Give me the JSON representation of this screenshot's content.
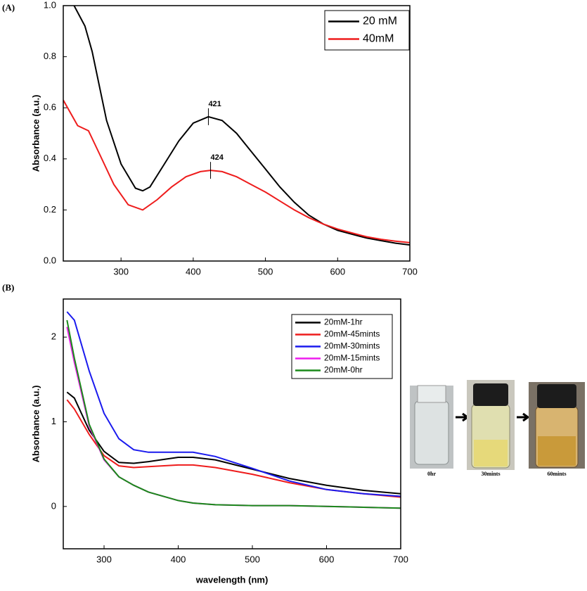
{
  "panel_labels": [
    "(A)",
    "(B)"
  ],
  "photos": [
    {
      "caption": "0hr"
    },
    {
      "caption": "30mints"
    },
    {
      "caption": "60mints"
    }
  ],
  "chart_data": [
    {
      "type": "line",
      "ylabel": "Absorbance (a.u.)",
      "xlim": [
        220,
        700
      ],
      "ylim": [
        0,
        1.0
      ],
      "xticks": [
        300,
        400,
        500,
        600,
        700
      ],
      "yticks": [
        {
          "value": 0,
          "label": "0.0"
        },
        0.2,
        0.4,
        0.6,
        0.8,
        {
          "value": 1,
          "label": "1.0"
        }
      ],
      "legend": "upper right",
      "series": [
        {
          "name": "20 mM",
          "color": "#000000",
          "x": [
            235,
            250,
            260,
            280,
            300,
            320,
            330,
            340,
            360,
            380,
            400,
            421,
            440,
            460,
            480,
            500,
            520,
            540,
            560,
            580,
            600,
            620,
            640,
            660,
            680,
            700
          ],
          "values": [
            1.0,
            0.92,
            0.82,
            0.55,
            0.38,
            0.285,
            0.275,
            0.29,
            0.38,
            0.47,
            0.54,
            0.565,
            0.55,
            0.5,
            0.43,
            0.36,
            0.29,
            0.23,
            0.18,
            0.145,
            0.12,
            0.105,
            0.09,
            0.08,
            0.07,
            0.063
          ]
        },
        {
          "name": "40mM",
          "color": "#ee1c1c",
          "x": [
            220,
            240,
            255,
            270,
            290,
            310,
            330,
            350,
            370,
            390,
            410,
            424,
            440,
            460,
            480,
            500,
            520,
            540,
            560,
            580,
            600,
            620,
            640,
            660,
            680,
            700
          ],
          "values": [
            0.63,
            0.53,
            0.51,
            0.42,
            0.3,
            0.22,
            0.2,
            0.24,
            0.29,
            0.33,
            0.35,
            0.355,
            0.35,
            0.33,
            0.3,
            0.27,
            0.235,
            0.2,
            0.17,
            0.145,
            0.125,
            0.11,
            0.095,
            0.085,
            0.078,
            0.072
          ]
        }
      ],
      "annotations": [
        {
          "label": "421",
          "x": 421,
          "y": 0.565
        },
        {
          "label": "424",
          "x": 424,
          "y": 0.355
        }
      ]
    },
    {
      "type": "line",
      "xlabel": "wavelength (nm)",
      "ylabel": "Absorbance (a.u.)",
      "xlim": [
        245,
        700
      ],
      "ylim": [
        -0.5,
        2.45
      ],
      "xticks": [
        300,
        400,
        500,
        600,
        700
      ],
      "yticks": [
        0,
        1,
        2
      ],
      "legend": "upper right",
      "series": [
        {
          "name": "20mM-1hr",
          "color": "#000000",
          "x": [
            250,
            260,
            280,
            300,
            320,
            340,
            360,
            400,
            420,
            450,
            500,
            550,
            600,
            650,
            700
          ],
          "values": [
            1.35,
            1.28,
            0.9,
            0.65,
            0.52,
            0.51,
            0.53,
            0.58,
            0.58,
            0.55,
            0.44,
            0.33,
            0.25,
            0.19,
            0.15
          ]
        },
        {
          "name": "20mM-45mints",
          "color": "#ee1c1c",
          "x": [
            250,
            260,
            280,
            300,
            320,
            340,
            360,
            400,
            420,
            450,
            500,
            550,
            600,
            650,
            700
          ],
          "values": [
            1.26,
            1.15,
            0.85,
            0.6,
            0.48,
            0.46,
            0.47,
            0.49,
            0.49,
            0.46,
            0.38,
            0.28,
            0.2,
            0.15,
            0.11
          ]
        },
        {
          "name": "20mM-30mints",
          "color": "#1a1aee",
          "x": [
            250,
            260,
            280,
            300,
            320,
            340,
            360,
            400,
            420,
            450,
            500,
            550,
            600,
            650,
            700
          ],
          "values": [
            2.3,
            2.2,
            1.6,
            1.1,
            0.8,
            0.67,
            0.64,
            0.64,
            0.64,
            0.59,
            0.45,
            0.3,
            0.2,
            0.15,
            0.12
          ]
        },
        {
          "name": "20mM-15mints",
          "color": "#ee1cee",
          "x": [
            250,
            260,
            280,
            300,
            320,
            340,
            360,
            400,
            420,
            450,
            500,
            550,
            600,
            650,
            700
          ],
          "values": [
            2.12,
            1.7,
            0.95,
            0.55,
            0.35,
            0.25,
            0.17,
            0.07,
            0.04,
            0.02,
            0.01,
            0.01,
            0,
            -0.01,
            -0.02
          ]
        },
        {
          "name": "20mM-0hr",
          "color": "#1a8a1a",
          "x": [
            250,
            260,
            280,
            300,
            320,
            340,
            360,
            400,
            420,
            450,
            500,
            550,
            600,
            650,
            700
          ],
          "values": [
            2.2,
            1.75,
            0.97,
            0.56,
            0.35,
            0.25,
            0.17,
            0.07,
            0.04,
            0.02,
            0.01,
            0.01,
            0,
            -0.01,
            -0.02
          ]
        }
      ]
    }
  ]
}
